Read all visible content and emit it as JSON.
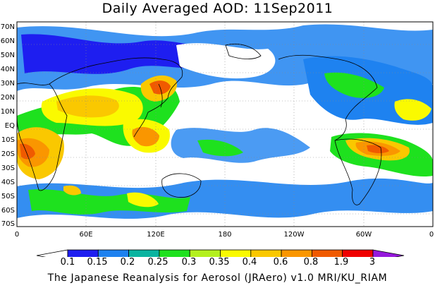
{
  "figure": {
    "title": "Daily Averaged AOD: 11Sep2011",
    "credit": "The Japanese Reanalysis for Aerosol (JRAero) v1.0 MRI/KU_RIAM"
  },
  "map": {
    "variable": "Aerosol Optical Depth",
    "projection": "cylindrical equidistant, 0 to 360 longitude",
    "lat_labels": [
      "70N",
      "60N",
      "50N",
      "40N",
      "30N",
      "20N",
      "10N",
      "EQ",
      "10S",
      "20S",
      "30S",
      "40S",
      "50S",
      "60S",
      "70S"
    ],
    "lon_labels": [
      "0",
      "60E",
      "120E",
      "180",
      "120W",
      "60W",
      "0"
    ],
    "gridlines": "dotted"
  },
  "colorbar": {
    "labels": [
      "0.1",
      "0.15",
      "0.2",
      "0.25",
      "0.3",
      "0.35",
      "0.4",
      "0.6",
      "0.8",
      "1.9",
      "3"
    ],
    "colors": [
      "#ffffff",
      "#1e1ef0",
      "#1e82f0",
      "#0ab4a0",
      "#1ee11e",
      "#b4f01e",
      "#fafa00",
      "#fac800",
      "#fa9600",
      "#f05a00",
      "#f00000",
      "#9619dc"
    ]
  }
}
